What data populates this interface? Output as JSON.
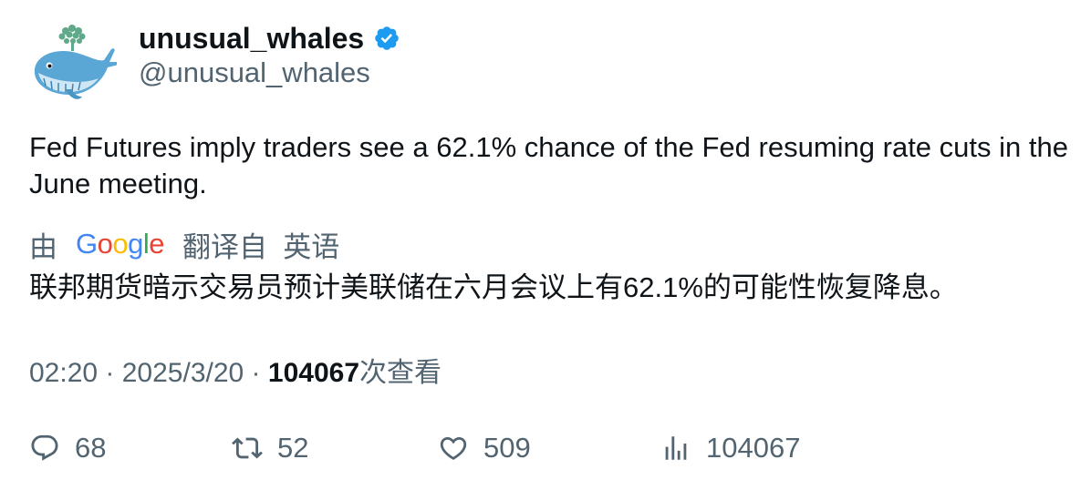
{
  "author": {
    "display_name": "unusual_whales",
    "handle": "@unusual_whales",
    "verified": true,
    "avatar_icon": "whale-avatar-icon"
  },
  "tweet": {
    "text": "Fed Futures imply traders see a 62.1% chance of the Fed resuming rate cuts in the June meeting."
  },
  "translation": {
    "by_label": "由",
    "provider": "Google",
    "from_label": "翻译自  英语",
    "text": "联邦期货暗示交易员预计美联储在六月会议上有62.1%的可能性恢复降息。"
  },
  "meta": {
    "time": "02:20",
    "separator": " · ",
    "date": "2025/3/20",
    "views_count": "104067",
    "views_label": "次查看"
  },
  "actions": {
    "reply_count": "68",
    "retweet_count": "52",
    "like_count": "509",
    "views_count": "104067"
  },
  "colors": {
    "text_primary": "#0f1419",
    "text_secondary": "#536471",
    "verified_blue": "#1d9bf0"
  }
}
